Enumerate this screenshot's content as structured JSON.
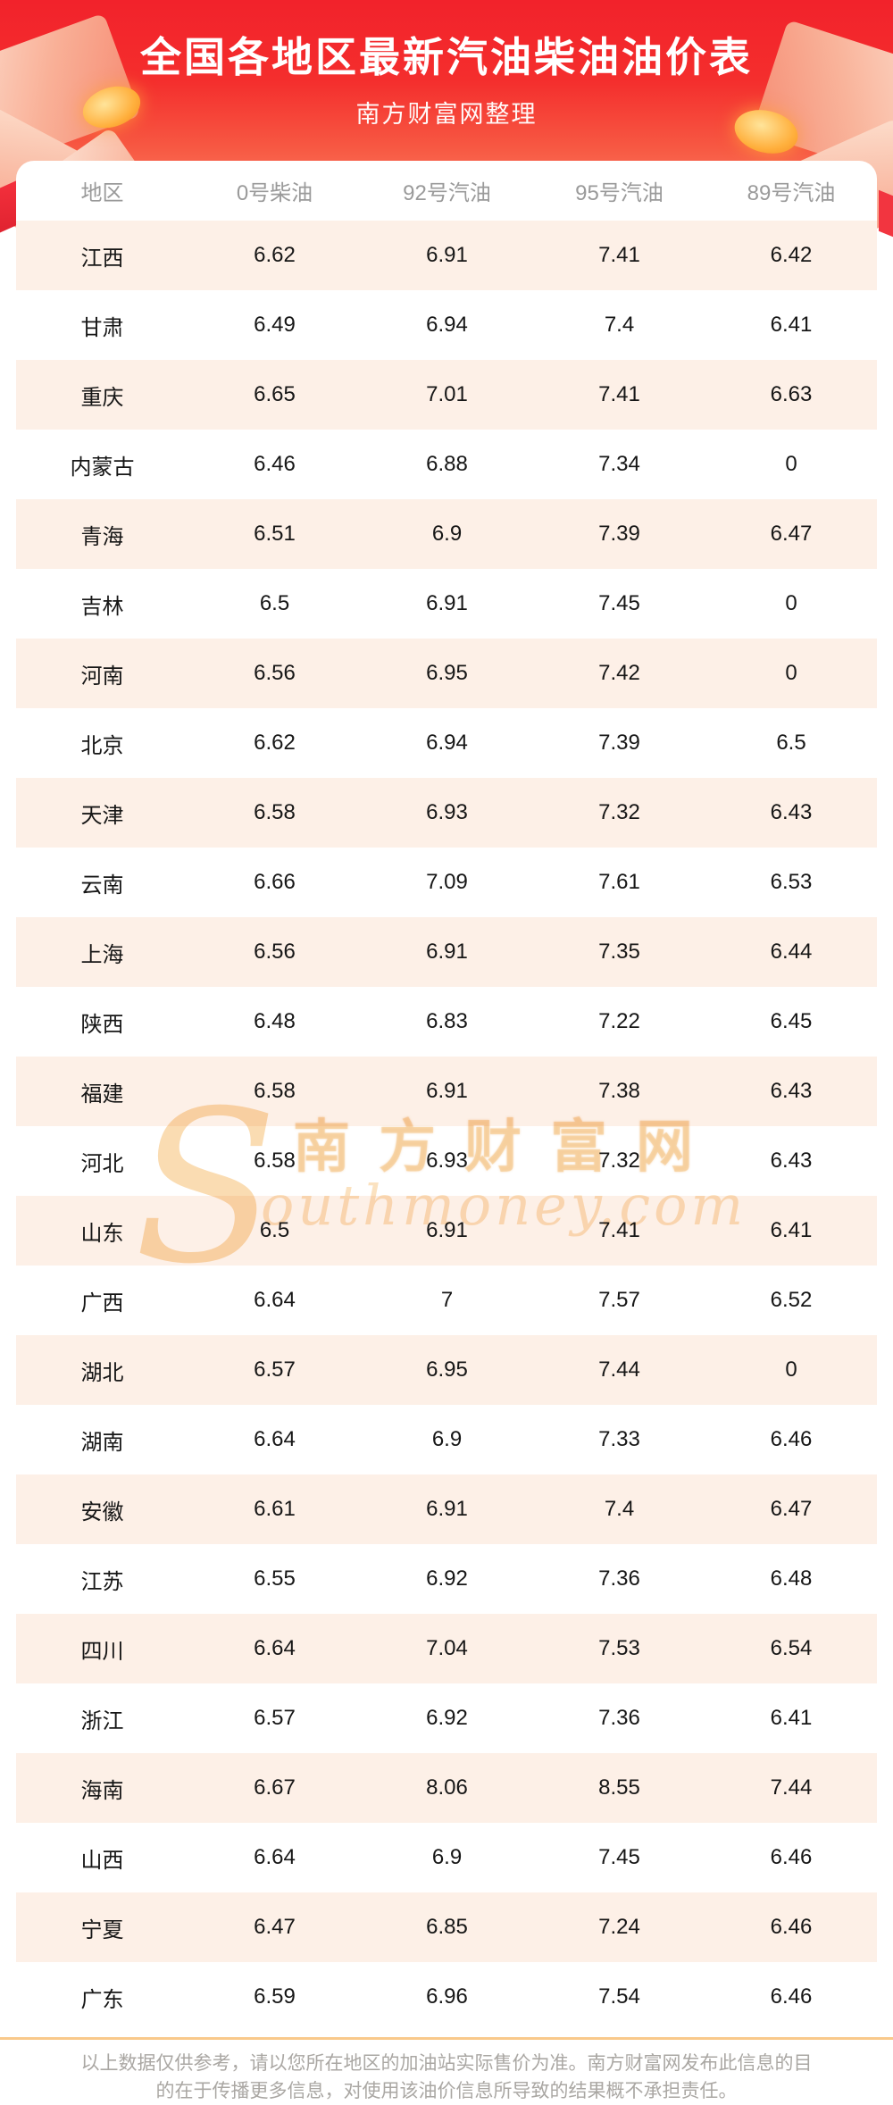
{
  "header": {
    "title": "全国各地区最新汽油柴油油价表",
    "subtitle": "南方财富网整理",
    "bg_top_color": "#f2222b",
    "bg_bottom_color": "#fb8468"
  },
  "chart_data": {
    "type": "table",
    "title": "全国各地区最新汽油柴油油价表",
    "columns": [
      "地区",
      "0号柴油",
      "92号汽油",
      "95号汽油",
      "89号汽油"
    ],
    "rows": [
      [
        "江西",
        6.62,
        6.91,
        7.41,
        6.42
      ],
      [
        "甘肃",
        6.49,
        6.94,
        7.4,
        6.41
      ],
      [
        "重庆",
        6.65,
        7.01,
        7.41,
        6.63
      ],
      [
        "内蒙古",
        6.46,
        6.88,
        7.34,
        0
      ],
      [
        "青海",
        6.51,
        6.9,
        7.39,
        6.47
      ],
      [
        "吉林",
        6.5,
        6.91,
        7.45,
        0
      ],
      [
        "河南",
        6.56,
        6.95,
        7.42,
        0
      ],
      [
        "北京",
        6.62,
        6.94,
        7.39,
        6.5
      ],
      [
        "天津",
        6.58,
        6.93,
        7.32,
        6.43
      ],
      [
        "云南",
        6.66,
        7.09,
        7.61,
        6.53
      ],
      [
        "上海",
        6.56,
        6.91,
        7.35,
        6.44
      ],
      [
        "陕西",
        6.48,
        6.83,
        7.22,
        6.45
      ],
      [
        "福建",
        6.58,
        6.91,
        7.38,
        6.43
      ],
      [
        "河北",
        6.58,
        6.93,
        7.32,
        6.43
      ],
      [
        "山东",
        6.5,
        6.91,
        7.41,
        6.41
      ],
      [
        "广西",
        6.64,
        7,
        7.57,
        6.52
      ],
      [
        "湖北",
        6.57,
        6.95,
        7.44,
        0
      ],
      [
        "湖南",
        6.64,
        6.9,
        7.33,
        6.46
      ],
      [
        "安徽",
        6.61,
        6.91,
        7.4,
        6.47
      ],
      [
        "江苏",
        6.55,
        6.92,
        7.36,
        6.48
      ],
      [
        "四川",
        6.64,
        7.04,
        7.53,
        6.54
      ],
      [
        "浙江",
        6.57,
        6.92,
        7.36,
        6.41
      ],
      [
        "海南",
        6.67,
        8.06,
        8.55,
        7.44
      ],
      [
        "山西",
        6.64,
        6.9,
        7.45,
        6.46
      ],
      [
        "宁夏",
        6.47,
        6.85,
        7.24,
        6.46
      ],
      [
        "广东",
        6.59,
        6.96,
        7.54,
        6.46
      ]
    ],
    "header_text_color": "#9a9a9a",
    "cell_text_color": "#161616",
    "alt_row_bg": "#fdf0e7",
    "grid": false,
    "legend_position": "none"
  },
  "watermark": {
    "latin_initial": "S",
    "cn_text": "南方财富网",
    "latin_rest": "outhmoney.com",
    "color": "#f6c88a"
  },
  "footer": {
    "disclaimer_line1": "以上数据仅供参考，请以您所在地区的加油站实际售价为准。南方财富网发布此信息的目",
    "disclaimer_line2": "的在于传播更多信息，对使用该油价信息所导致的结果概不承担责任。",
    "divider_color": "#f9c98b",
    "text_color": "#aaa7a3"
  }
}
